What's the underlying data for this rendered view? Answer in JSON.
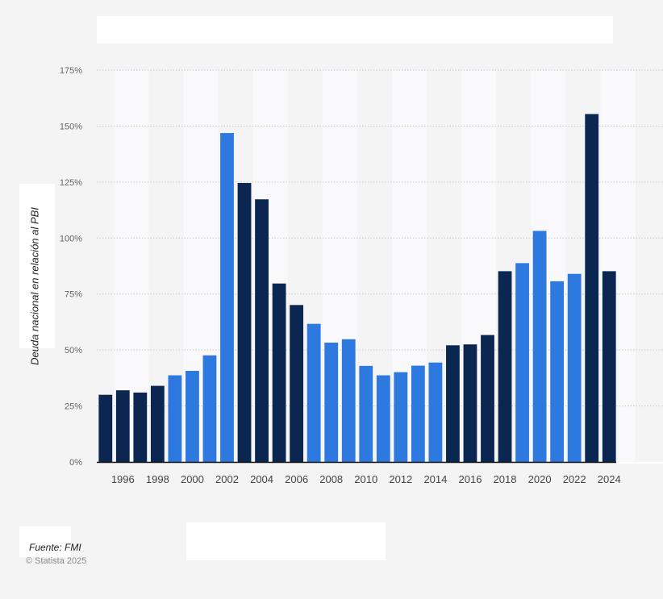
{
  "chart_data": {
    "type": "bar",
    "title": "",
    "xlabel": "",
    "ylabel": "Deuda nacional en relación al PBI",
    "ylim": [
      0,
      175
    ],
    "ytick_values": [
      0,
      25,
      50,
      75,
      100,
      125,
      150,
      175
    ],
    "ytick_labels": [
      "0%",
      "25%",
      "50%",
      "75%",
      "100%",
      "125%",
      "150%",
      "175%"
    ],
    "x_tick_labels": [
      "1996",
      "1998",
      "2000",
      "2002",
      "2004",
      "2006",
      "2008",
      "2010",
      "2012",
      "2014",
      "2016",
      "2018",
      "2020",
      "2022",
      "2024"
    ],
    "categories": [
      "1995",
      "1996",
      "1997",
      "1998",
      "1999",
      "2000",
      "2001",
      "2002",
      "2003",
      "2004",
      "2005",
      "2006",
      "2007",
      "2008",
      "2009",
      "2010",
      "2011",
      "2012",
      "2013",
      "2014",
      "2015",
      "2016",
      "2017",
      "2018",
      "2019",
      "2020",
      "2021",
      "2022",
      "2023",
      "2024"
    ],
    "values": [
      30,
      32,
      31,
      34,
      38.7,
      40.7,
      47.6,
      146.9,
      124.6,
      117.3,
      79.7,
      70.1,
      61.7,
      53.3,
      54.8,
      42.9,
      38.7,
      40.1,
      43,
      44.4,
      52.1,
      52.5,
      56.7,
      85.2,
      88.8,
      103.2,
      80.7,
      84,
      155.4,
      85.2
    ],
    "bar_colors": [
      "#0b2751",
      "#0b2751",
      "#0b2751",
      "#0b2751",
      "#2d79e0",
      "#2d79e0",
      "#2d79e0",
      "#2d79e0",
      "#0b2751",
      "#0b2751",
      "#0b2751",
      "#0b2751",
      "#2d79e0",
      "#2d79e0",
      "#2d79e0",
      "#2d79e0",
      "#2d79e0",
      "#2d79e0",
      "#2d79e0",
      "#2d79e0",
      "#0b2751",
      "#0b2751",
      "#0b2751",
      "#0b2751",
      "#2d79e0",
      "#2d79e0",
      "#2d79e0",
      "#2d79e0",
      "#0b2751",
      "#0b2751"
    ],
    "grid": true
  },
  "footer": {
    "source": "Fuente: FMI",
    "copyright": "© Statista 2025"
  }
}
